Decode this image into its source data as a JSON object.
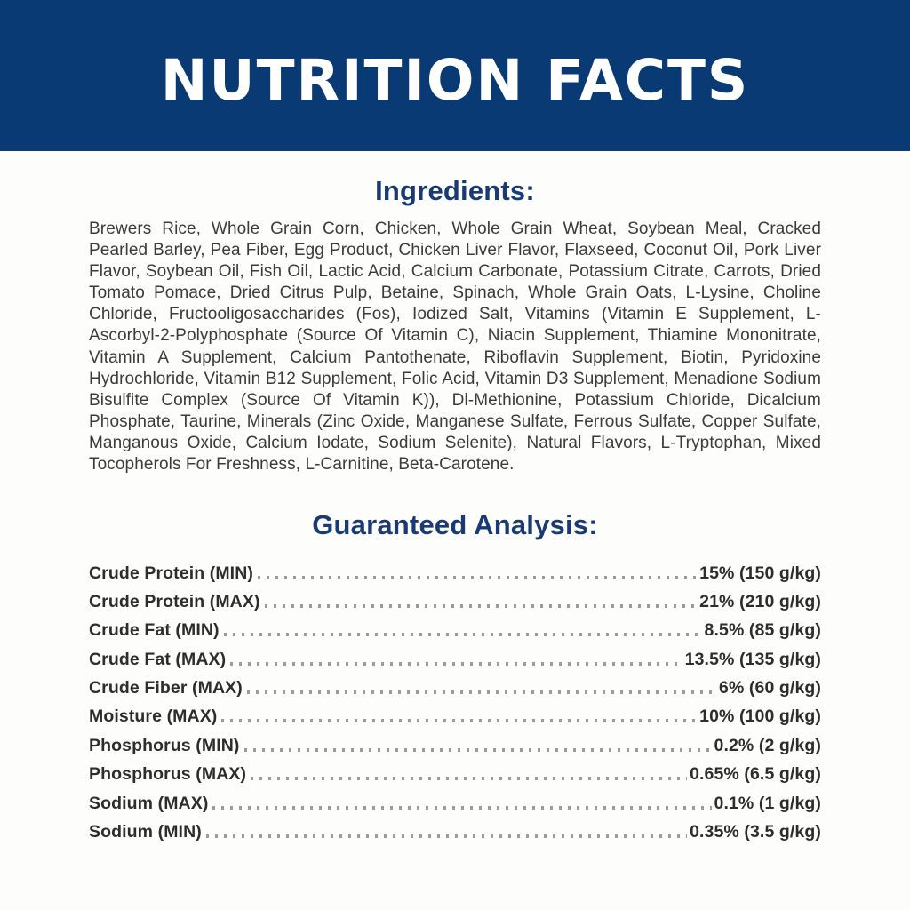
{
  "banner": {
    "title": "NUTRITION FACTS"
  },
  "ingredients": {
    "heading": "Ingredients:",
    "text": "Brewers Rice, Whole Grain Corn, Chicken, Whole Grain Wheat, Soybean Meal, Cracked Pearled Barley, Pea Fiber, Egg Product, Chicken Liver Flavor, Flaxseed, Coconut Oil, Pork Liver Flavor, Soybean Oil, Fish Oil, Lactic Acid, Calcium Carbonate, Potassium Citrate, Carrots, Dried Tomato Pomace, Dried Citrus Pulp, Betaine, Spinach, Whole Grain Oats, L-Lysine, Choline Chloride, Fructooligosaccharides (Fos), Iodized Salt, Vitamins (Vitamin E Supplement, L-Ascorbyl-2-Polyphosphate (Source Of Vitamin C), Niacin Supplement, Thiamine Mononitrate, Vitamin A Supplement, Calcium Pantothenate, Riboflavin Supplement, Biotin, Pyridoxine Hydrochloride, Vitamin B12 Supplement, Folic Acid, Vitamin D3 Supplement, Menadione Sodium Bisulfite Complex (Source Of Vitamin K)), Dl-Methionine, Potassium Chloride, Dicalcium Phosphate, Taurine, Minerals (Zinc Oxide, Manganese Sulfate, Ferrous Sulfate, Copper Sulfate, Manganous Oxide, Calcium Iodate, Sodium Selenite), Natural Flavors, L-Tryptophan, Mixed Tocopherols For Freshness, L-Carnitine, Beta-Carotene."
  },
  "analysis": {
    "heading": "Guaranteed Analysis:",
    "rows": [
      {
        "label": "Crude Protein (MIN)",
        "value": "15% (150 g/kg)"
      },
      {
        "label": "Crude Protein (MAX)",
        "value": "21% (210 g/kg)"
      },
      {
        "label": "Crude Fat (MIN)",
        "value": "8.5% (85 g/kg)"
      },
      {
        "label": "Crude Fat (MAX)",
        "value": "13.5% (135 g/kg)"
      },
      {
        "label": "Crude Fiber (MAX)",
        "value": "6% (60 g/kg)"
      },
      {
        "label": "Moisture (MAX)",
        "value": "10% (100 g/kg)"
      },
      {
        "label": "Phosphorus (MIN)",
        "value": "0.2% (2 g/kg)"
      },
      {
        "label": "Phosphorus (MAX)",
        "value": "0.65% (6.5 g/kg)"
      },
      {
        "label": "Sodium (MAX)",
        "value": "0.1% (1 g/kg)"
      },
      {
        "label": "Sodium (MIN)",
        "value": "0.35% (3.5 g/kg)"
      }
    ]
  },
  "colors": {
    "banner_bg": "#0a3a74",
    "banner_text": "#ffffff",
    "heading_blue": "#1a3a74",
    "body_text": "#3b3b3b",
    "table_text": "#2d2d2d",
    "dot_leader_gray": "#9b9b9b",
    "page_bg": "#fdfdfb"
  }
}
